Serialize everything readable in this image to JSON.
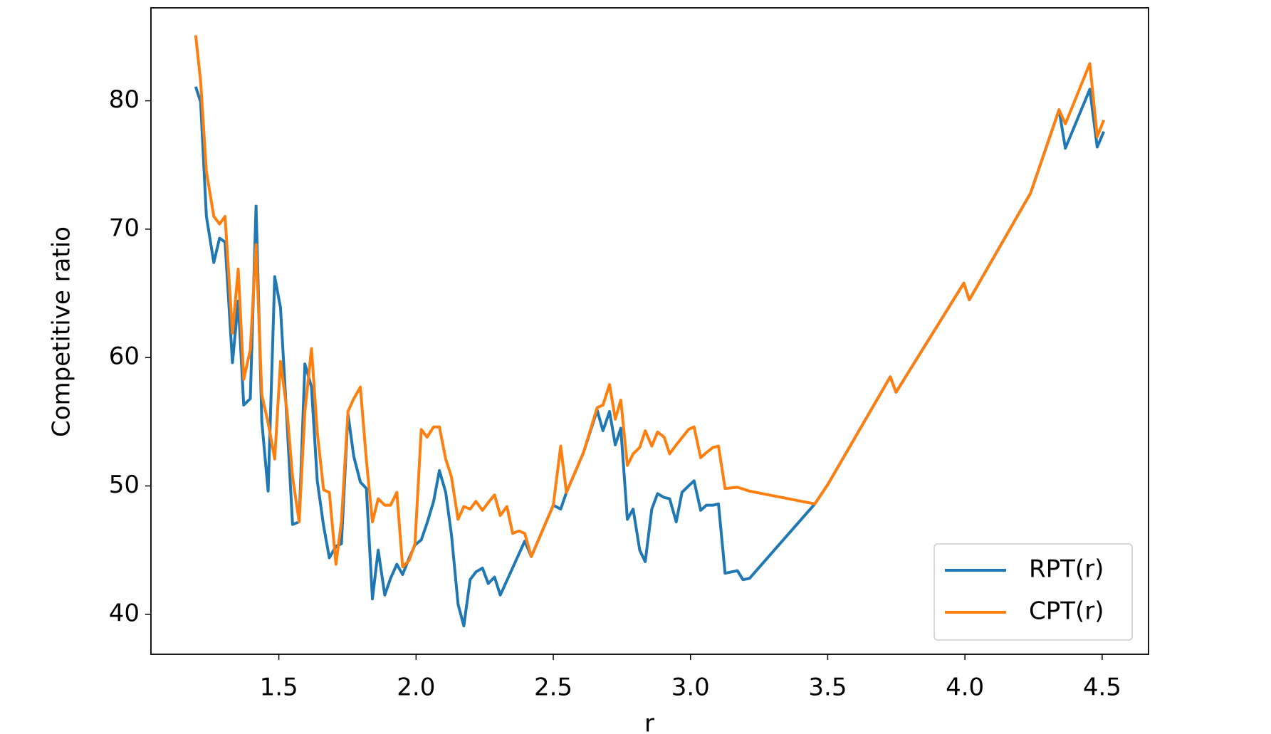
{
  "chart_data": {
    "type": "line",
    "xlabel": "r",
    "ylabel": "Competitive ratio",
    "xlim": [
      1.034,
      4.669
    ],
    "ylim": [
      36.89,
      87.24
    ],
    "xticks": [
      1.5,
      {
        "value": 2,
        "label": "2.0"
      },
      2.5,
      {
        "value": 3,
        "label": "3.0"
      },
      3.5,
      {
        "value": 4,
        "label": "4.0"
      },
      4.5
    ],
    "yticks": [
      40,
      50,
      60,
      70,
      80
    ],
    "grid": false,
    "legend": "lower right",
    "series": [
      {
        "name": "RPT(r)",
        "color": "#1f77b4",
        "x": [
          1.197,
          1.215,
          1.236,
          1.263,
          1.284,
          1.304,
          1.331,
          1.352,
          1.372,
          1.396,
          1.417,
          1.438,
          1.461,
          1.485,
          1.506,
          1.53,
          1.55,
          1.574,
          1.595,
          1.619,
          1.64,
          1.663,
          1.684,
          1.708,
          1.728,
          1.752,
          1.773,
          1.797,
          1.819,
          1.841,
          1.862,
          1.886,
          1.907,
          1.93,
          1.951,
          1.975,
          1.996,
          2.019,
          2.04,
          2.064,
          2.085,
          2.108,
          2.129,
          2.153,
          2.174,
          2.197,
          2.218,
          2.242,
          2.263,
          2.286,
          2.307,
          2.396,
          2.42,
          2.5,
          2.527,
          2.548,
          2.61,
          2.66,
          2.681,
          2.705,
          2.726,
          2.746,
          2.77,
          2.791,
          2.815,
          2.835,
          2.859,
          2.88,
          2.904,
          2.924,
          2.948,
          2.969,
          2.993,
          3.013,
          3.037,
          3.058,
          3.082,
          3.102,
          3.126,
          3.171,
          3.191,
          3.215,
          3.453,
          3.5,
          3.728,
          3.749,
          3.996,
          4.016,
          4.239,
          4.343,
          4.366,
          4.455,
          4.482,
          4.506
        ],
        "values": [
          81.1,
          79.9,
          71.0,
          67.4,
          69.3,
          69.0,
          59.6,
          64.4,
          56.3,
          56.8,
          71.8,
          55.0,
          49.6,
          66.3,
          63.9,
          54.9,
          47.0,
          47.2,
          59.5,
          57.7,
          50.4,
          46.9,
          44.4,
          45.3,
          45.5,
          55.6,
          52.3,
          50.3,
          49.8,
          41.2,
          45.0,
          41.5,
          42.8,
          43.9,
          43.1,
          44.4,
          45.4,
          45.8,
          47.1,
          48.8,
          51.2,
          49.5,
          46.2,
          40.8,
          39.1,
          42.7,
          43.3,
          43.6,
          42.4,
          42.9,
          41.5,
          45.7,
          44.5,
          48.5,
          48.2,
          49.5,
          52.6,
          55.9,
          54.3,
          55.8,
          53.2,
          54.5,
          47.4,
          48.2,
          45.0,
          44.1,
          48.2,
          49.4,
          49.1,
          49.0,
          47.2,
          49.5,
          50.0,
          50.4,
          48.1,
          48.5,
          48.5,
          48.6,
          43.2,
          43.4,
          42.7,
          42.8,
          48.6,
          50.1,
          58.5,
          57.3,
          65.8,
          64.5,
          72.8,
          79.3,
          76.3,
          80.9,
          76.4,
          77.6
        ]
      },
      {
        "name": "CPT(r)",
        "color": "#ff7f0e",
        "x": [
          1.197,
          1.215,
          1.236,
          1.263,
          1.284,
          1.304,
          1.331,
          1.352,
          1.372,
          1.396,
          1.417,
          1.438,
          1.461,
          1.485,
          1.506,
          1.53,
          1.55,
          1.574,
          1.595,
          1.619,
          1.64,
          1.663,
          1.684,
          1.708,
          1.728,
          1.752,
          1.773,
          1.797,
          1.819,
          1.841,
          1.862,
          1.886,
          1.907,
          1.93,
          1.951,
          1.975,
          1.996,
          2.019,
          2.04,
          2.064,
          2.085,
          2.108,
          2.129,
          2.153,
          2.174,
          2.197,
          2.218,
          2.242,
          2.263,
          2.286,
          2.307,
          2.331,
          2.352,
          2.375,
          2.396,
          2.42,
          2.5,
          2.527,
          2.548,
          2.61,
          2.66,
          2.681,
          2.705,
          2.726,
          2.746,
          2.77,
          2.791,
          2.815,
          2.835,
          2.859,
          2.88,
          2.904,
          2.924,
          2.948,
          2.993,
          3.013,
          3.037,
          3.058,
          3.082,
          3.102,
          3.126,
          3.171,
          3.215,
          3.453,
          3.5,
          3.728,
          3.749,
          3.996,
          4.016,
          4.239,
          4.343,
          4.366,
          4.455,
          4.482,
          4.506
        ],
        "values": [
          85.1,
          81.5,
          74.5,
          71.0,
          70.4,
          71.0,
          61.9,
          66.9,
          58.3,
          60.6,
          68.8,
          57.1,
          54.9,
          52.1,
          59.7,
          55.8,
          50.7,
          47.2,
          55.8,
          60.7,
          54.2,
          49.7,
          49.5,
          43.9,
          47.2,
          55.8,
          56.8,
          57.7,
          52.0,
          47.2,
          49.0,
          48.5,
          48.5,
          49.5,
          43.7,
          44.2,
          45.5,
          54.4,
          53.8,
          54.6,
          54.6,
          52.1,
          50.7,
          47.4,
          48.4,
          48.2,
          48.8,
          48.1,
          48.7,
          49.3,
          47.7,
          48.4,
          46.3,
          46.5,
          46.3,
          44.5,
          48.5,
          53.1,
          49.5,
          52.6,
          56.1,
          56.3,
          57.9,
          55.2,
          56.7,
          51.6,
          52.5,
          53.0,
          54.3,
          53.1,
          54.2,
          53.8,
          52.5,
          53.2,
          54.4,
          54.6,
          52.2,
          52.6,
          53.0,
          53.1,
          49.8,
          49.9,
          49.6,
          48.6,
          50.1,
          58.5,
          57.3,
          65.8,
          64.5,
          72.8,
          79.3,
          78.2,
          82.9,
          77.2,
          78.5
        ]
      }
    ]
  }
}
